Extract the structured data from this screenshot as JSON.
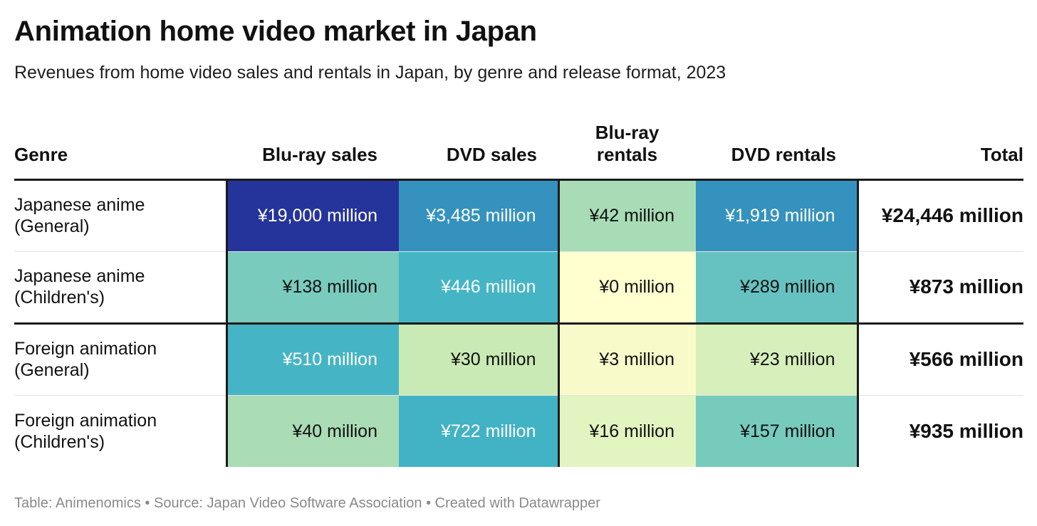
{
  "title": "Animation home video market in Japan",
  "subtitle": "Revenues from home video sales and rentals in Japan, by genre and release format, 2023",
  "footer": "Table: Animenomics • Source: Japan Video Software Association • Created with Datawrapper",
  "columns": {
    "genre": "Genre",
    "bluray_sales": "Blu-ray sales",
    "dvd_sales": "DVD sales",
    "bluray_rentals_line1": "Blu-ray",
    "bluray_rentals_line2": "rentals",
    "dvd_rentals": "DVD rentals",
    "total": "Total"
  },
  "rows": [
    {
      "genre_line1": "Japanese anime",
      "genre_line2": "(General)",
      "cells": [
        "¥19,000 million",
        "¥3,485 million",
        "¥42 million",
        "¥1,919 million"
      ],
      "colors": [
        "#25349a",
        "#3592be",
        "#a7dcb6",
        "#3592be"
      ],
      "light": [
        true,
        true,
        false,
        true
      ],
      "total": "¥24,446 million"
    },
    {
      "genre_line1": "Japanese anime",
      "genre_line2": "(Children's)",
      "cells": [
        "¥138 million",
        "¥446 million",
        "¥0 million",
        "¥289 million"
      ],
      "colors": [
        "#79cbbd",
        "#45b5c5",
        "#ffffd0",
        "#66c2c0"
      ],
      "light": [
        false,
        true,
        false,
        false
      ],
      "total": "¥873 million"
    },
    {
      "genre_line1": "Foreign animation",
      "genre_line2": "(General)",
      "cells": [
        "¥510 million",
        "¥30 million",
        "¥3 million",
        "¥23 million"
      ],
      "colors": [
        "#45b5c5",
        "#c9eab5",
        "#f8fbc9",
        "#d6efbb"
      ],
      "light": [
        true,
        false,
        false,
        false
      ],
      "total": "¥566 million"
    },
    {
      "genre_line1": "Foreign animation",
      "genre_line2": "(Children's)",
      "cells": [
        "¥40 million",
        "¥722 million",
        "¥16 million",
        "¥157 million"
      ],
      "colors": [
        "#aadcb5",
        "#42b2c5",
        "#e2f4c0",
        "#77cbbd"
      ],
      "light": [
        false,
        true,
        false,
        false
      ],
      "total": "¥935 million"
    }
  ],
  "chart_data": {
    "type": "table",
    "title": "Animation home video market in Japan",
    "subtitle": "Revenues from home video sales and rentals in Japan, by genre and release format, 2023",
    "unit": "¥ million",
    "columns": [
      "Genre",
      "Blu-ray sales",
      "DVD sales",
      "Blu-ray rentals",
      "DVD rentals",
      "Total"
    ],
    "categories": [
      "Japanese anime (General)",
      "Japanese anime (Children's)",
      "Foreign animation (General)",
      "Foreign animation (Children's)"
    ],
    "series": [
      {
        "name": "Blu-ray sales",
        "values": [
          19000,
          138,
          510,
          40
        ]
      },
      {
        "name": "DVD sales",
        "values": [
          3485,
          446,
          30,
          722
        ]
      },
      {
        "name": "Blu-ray rentals",
        "values": [
          42,
          0,
          3,
          16
        ]
      },
      {
        "name": "DVD rentals",
        "values": [
          1919,
          289,
          23,
          157
        ]
      },
      {
        "name": "Total",
        "values": [
          24446,
          873,
          566,
          935
        ]
      }
    ]
  }
}
